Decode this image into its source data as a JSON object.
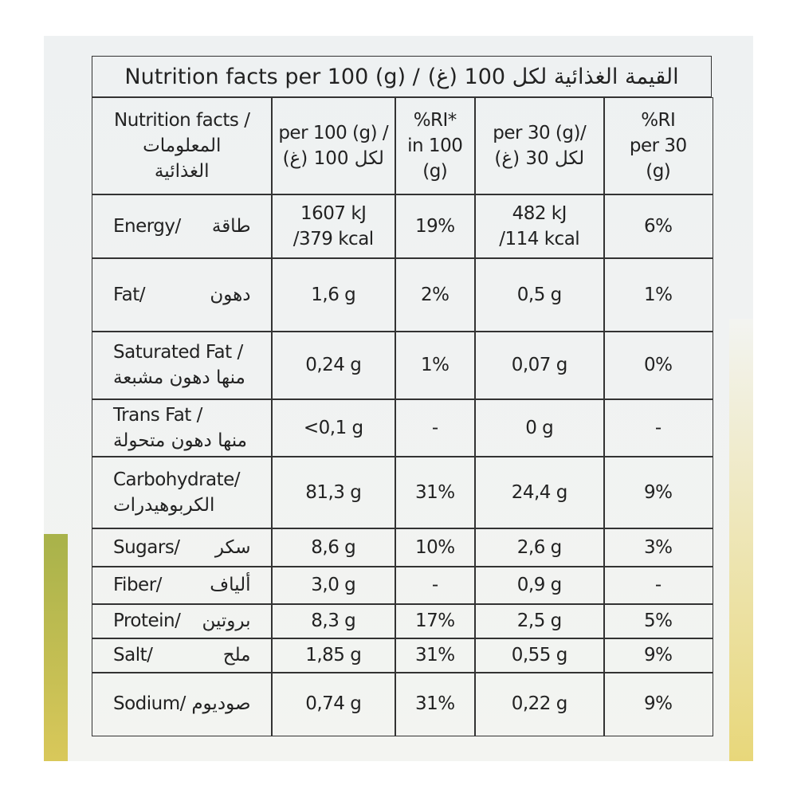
{
  "title_en": "Nutrition facts per 100 (g) /",
  "title_ar": "القيمة الغذائية لكل 100 (غ)",
  "header": [
    [
      "Nutrition facts /",
      "المعلومات",
      "الغذائية"
    ],
    [
      "per 100 (g) /",
      "لكل 100 (غ)"
    ],
    [
      "%RI*",
      "in 100",
      "(g)"
    ],
    [
      "per 30 (g)/",
      "لكل 30 (غ)"
    ],
    [
      "%RI",
      "per 30",
      "(g)"
    ]
  ],
  "rows": [
    {
      "en": "Energy/",
      "ar": "طاقة",
      "values": [
        [
          "1607 kJ",
          "/379 kcal"
        ],
        [
          "19%"
        ],
        [
          "482 kJ",
          "/114 kcal"
        ],
        [
          "6%"
        ]
      ]
    },
    {
      "en": "Fat/",
      "ar": "دهون",
      "values": [
        [
          "1,6 g"
        ],
        [
          "2%"
        ],
        [
          "0,5 g"
        ],
        [
          "1%"
        ]
      ]
    },
    {
      "en": "Saturated Fat /",
      "ar": "منها دهون مشبعة",
      "values": [
        [
          "0,24 g"
        ],
        [
          "1%"
        ],
        [
          "0,07 g"
        ],
        [
          "0%"
        ]
      ]
    },
    {
      "en": "Trans Fat /",
      "ar": "منها دهون متحولة",
      "values": [
        [
          "<0,1 g"
        ],
        [
          "-"
        ],
        [
          "0 g"
        ],
        [
          "-"
        ]
      ]
    },
    {
      "en": "Carbohydrate/",
      "ar": "الكربوهيدرات",
      "values": [
        [
          "81,3 g"
        ],
        [
          "31%"
        ],
        [
          "24,4 g"
        ],
        [
          "9%"
        ]
      ]
    },
    {
      "en": "Sugars/",
      "ar": "سكر",
      "values": [
        [
          "8,6 g"
        ],
        [
          "10%"
        ],
        [
          "2,6 g"
        ],
        [
          "3%"
        ]
      ]
    },
    {
      "en": "Fiber/",
      "ar": "ألياف",
      "values": [
        [
          "3,0 g"
        ],
        [
          "-"
        ],
        [
          "0,9 g"
        ],
        [
          "-"
        ]
      ]
    },
    {
      "en": "Protein/",
      "ar": "بروتين",
      "values": [
        [
          "8,3 g"
        ],
        [
          "17%"
        ],
        [
          "2,5 g"
        ],
        [
          "5%"
        ]
      ]
    },
    {
      "en": "Salt/",
      "ar": "ملح",
      "values": [
        [
          "1,85 g"
        ],
        [
          "31%"
        ],
        [
          "0,55 g"
        ],
        [
          "9%"
        ]
      ]
    },
    {
      "en": "Sodium/",
      "ar": "صوديوم",
      "values": [
        [
          "0,74 g"
        ],
        [
          "31%"
        ],
        [
          "0,22 g"
        ],
        [
          "9%"
        ]
      ]
    }
  ]
}
